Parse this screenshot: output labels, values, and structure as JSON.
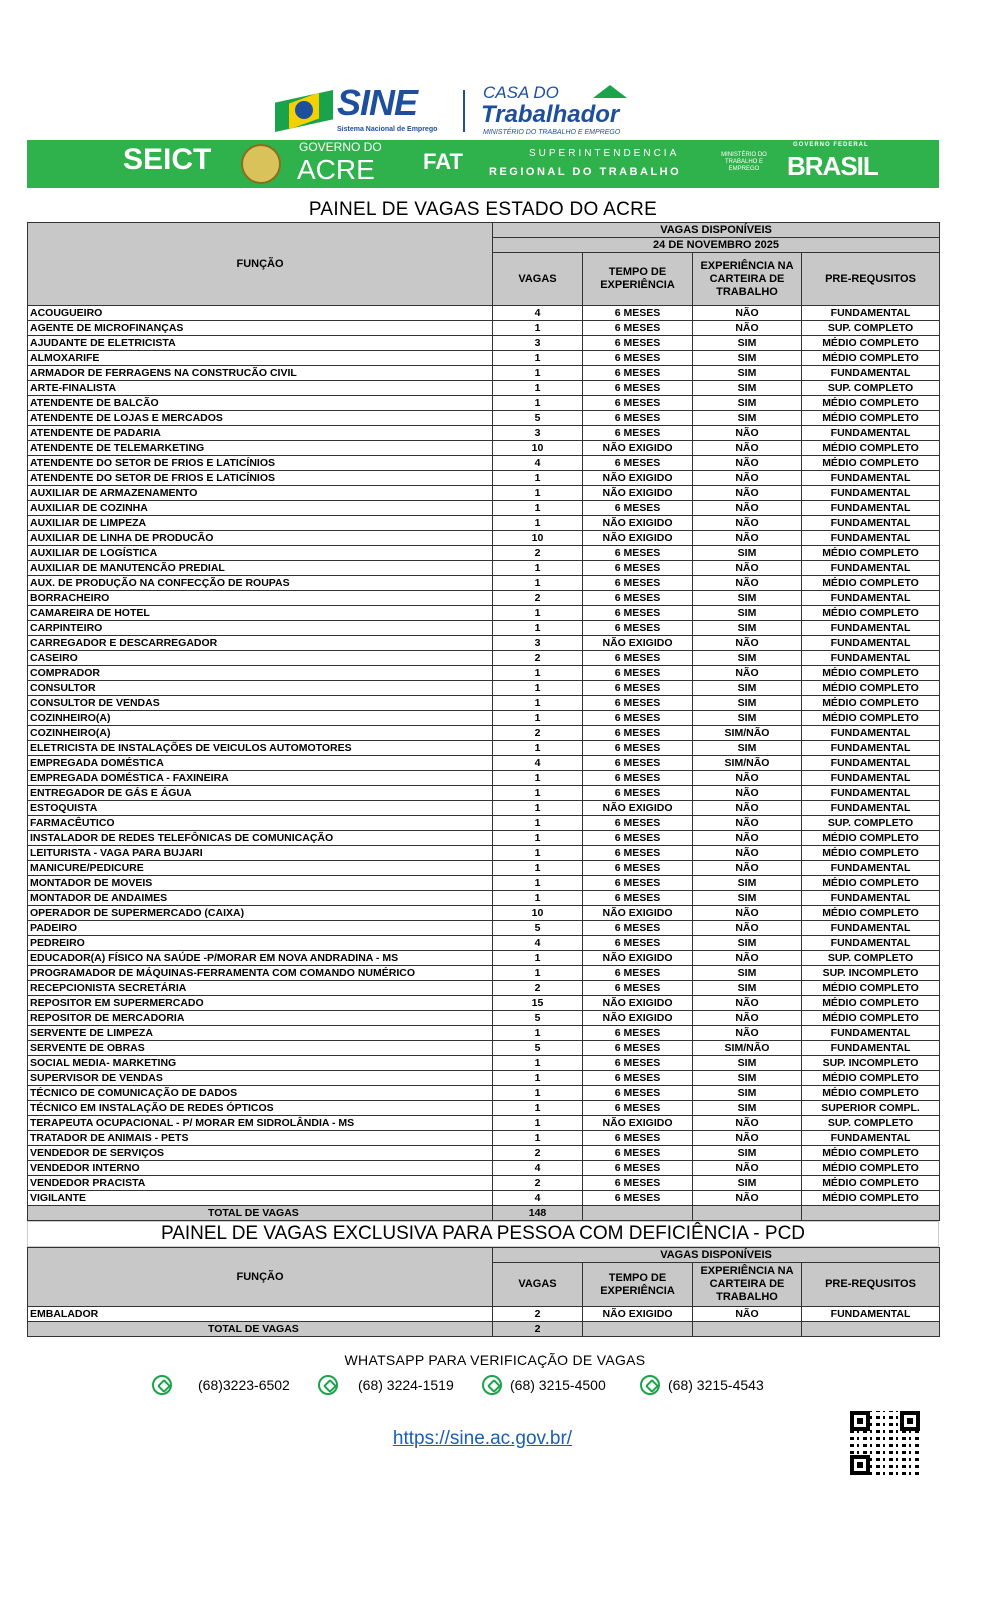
{
  "logos": {
    "sine": "SINE",
    "sine_sub": "Sistema Nacional de Emprego",
    "casa": "CASA DO",
    "trabalhador": "Trabalhador",
    "ministerio": "MINISTÉRIO DO TRABALHO E EMPREGO",
    "seict": "SEICT",
    "governo": "GOVERNO DO",
    "acre": "ACRE",
    "fat": "FAT",
    "superintendencia": "SUPERINTENDENCIA",
    "regional": "REGIONAL DO TRABALHO",
    "min_trab": "MINISTÉRIO DO TRABALHO E EMPREGO",
    "gov_federal": "GOVERNO FEDERAL",
    "brasil": "BRASIL"
  },
  "title": "PAINEL DE VAGAS ESTADO DO ACRE",
  "headers": {
    "funcao": "FUNÇÃO",
    "vagas_disponiveis": "VAGAS DISPONÍVEIS",
    "date": "24 DE NOVEMBRO 2025",
    "vagas": "VAGAS",
    "tempo": "TEMPO DE EXPERIÊNCIA",
    "experiencia": "EXPERIÊNCIA NA CARTEIRA DE TRABALHO",
    "requisitos": "PRE-REQUSITOS"
  },
  "rows": [
    [
      "ACOUGUEIRO",
      "4",
      "6 MESES",
      "NÃO",
      "FUNDAMENTAL"
    ],
    [
      "AGENTE DE MICROFINANÇAS",
      "1",
      "6 MESES",
      "NÃO",
      "SUP. COMPLETO"
    ],
    [
      "AJUDANTE DE ELETRICISTA",
      "3",
      "6 MESES",
      "SIM",
      "MÉDIO COMPLETO"
    ],
    [
      "ALMOXARIFE",
      "1",
      "6 MESES",
      "SIM",
      "MÉDIO COMPLETO"
    ],
    [
      "ARMADOR DE FERRAGENS NA CONSTRUCÃO CIVIL",
      "1",
      "6 MESES",
      "SIM",
      "FUNDAMENTAL"
    ],
    [
      "ARTE-FINALISTA",
      "1",
      "6 MESES",
      "SIM",
      "SUP. COMPLETO"
    ],
    [
      "ATENDENTE DE BALCÃO",
      "1",
      "6 MESES",
      "SIM",
      "MÉDIO COMPLETO"
    ],
    [
      "ATENDENTE DE LOJAS E MERCADOS",
      "5",
      "6 MESES",
      "SIM",
      "MÉDIO COMPLETO"
    ],
    [
      "ATENDENTE DE PADARIA",
      "3",
      "6 MESES",
      "NÃO",
      "FUNDAMENTAL"
    ],
    [
      "ATENDENTE DE TELEMARKETING",
      "10",
      "NÃO EXIGIDO",
      "NÃO",
      "MÉDIO COMPLETO"
    ],
    [
      "ATENDENTE DO SETOR DE FRIOS E LATICÍNIOS",
      "4",
      "6 MESES",
      "NÃO",
      "MÉDIO COMPLETO"
    ],
    [
      "ATENDENTE DO SETOR DE FRIOS E LATICÍNIOS",
      "1",
      "NÃO EXIGIDO",
      "NÃO",
      "FUNDAMENTAL"
    ],
    [
      "AUXILIAR DE ARMAZENAMENTO",
      "1",
      "NÃO EXIGIDO",
      "NÃO",
      "FUNDAMENTAL"
    ],
    [
      "AUXILIAR DE COZINHA",
      "1",
      "6 MESES",
      "NÃO",
      "FUNDAMENTAL"
    ],
    [
      "AUXILIAR DE LIMPEZA",
      "1",
      "NÃO EXIGIDO",
      "NÃO",
      "FUNDAMENTAL"
    ],
    [
      "AUXILIAR DE LINHA DE PRODUCÃO",
      "10",
      "NÃO EXIGIDO",
      "NÃO",
      "FUNDAMENTAL"
    ],
    [
      "AUXILIAR DE LOGÍSTICA",
      "2",
      "6 MESES",
      "SIM",
      "MÉDIO COMPLETO"
    ],
    [
      "AUXILIAR DE MANUTENCÃO PREDIAL",
      "1",
      "6 MESES",
      "NÃO",
      "FUNDAMENTAL"
    ],
    [
      "AUX. DE  PRODUÇÃO NA CONFECÇÃO DE ROUPAS",
      "1",
      "6 MESES",
      "NÃO",
      "MÉDIO COMPLETO"
    ],
    [
      "BORRACHEIRO",
      "2",
      "6 MESES",
      "SIM",
      "FUNDAMENTAL"
    ],
    [
      "CAMAREIRA DE HOTEL",
      "1",
      "6 MESES",
      "SIM",
      "MÉDIO COMPLETO"
    ],
    [
      "CARPINTEIRO",
      "1",
      "6 MESES",
      "SIM",
      "FUNDAMENTAL"
    ],
    [
      "CARREGADOR E DESCARREGADOR",
      "3",
      "NÃO EXIGIDO",
      "NÃO",
      "FUNDAMENTAL"
    ],
    [
      "CASEIRO",
      "2",
      "6 MESES",
      "SIM",
      "FUNDAMENTAL"
    ],
    [
      "COMPRADOR",
      "1",
      "6 MESES",
      "NÃO",
      "MÉDIO COMPLETO"
    ],
    [
      "CONSULTOR",
      "1",
      "6 MESES",
      "SIM",
      "MÉDIO COMPLETO"
    ],
    [
      "CONSULTOR DE VENDAS",
      "1",
      "6 MESES",
      "SIM",
      "MÉDIO COMPLETO"
    ],
    [
      "COZINHEIRO(A)",
      "1",
      "6 MESES",
      "SIM",
      "MÉDIO COMPLETO"
    ],
    [
      "COZINHEIRO(A)",
      "2",
      "6 MESES",
      "SIM/NÃO",
      "FUNDAMENTAL"
    ],
    [
      "ELETRICISTA DE INSTALAÇÕES DE VEICULOS AUTOMOTORES",
      "1",
      "6 MESES",
      "SIM",
      "FUNDAMENTAL"
    ],
    [
      "EMPREGADA DOMÉSTICA",
      "4",
      "6 MESES",
      "SIM/NÃO",
      "FUNDAMENTAL"
    ],
    [
      "EMPREGADA DOMÉSTICA - FAXINEIRA",
      "1",
      "6 MESES",
      "NÃO",
      "FUNDAMENTAL"
    ],
    [
      "ENTREGADOR DE GÁS E ÁGUA",
      "1",
      "6 MESES",
      "NÃO",
      "FUNDAMENTAL"
    ],
    [
      "ESTOQUISTA",
      "1",
      "NÃO EXIGIDO",
      "NÃO",
      "FUNDAMENTAL"
    ],
    [
      "FARMACÊUTICO",
      "1",
      "6 MESES",
      "NÃO",
      "SUP. COMPLETO"
    ],
    [
      "INSTALADOR DE REDES TELEFÔNICAS  DE COMUNICAÇÃO",
      "1",
      "6 MESES",
      "NÃO",
      "MÉDIO COMPLETO"
    ],
    [
      "LEITURISTA - VAGA PARA BUJARI",
      "1",
      "6 MESES",
      "NÃO",
      "MÉDIO COMPLETO"
    ],
    [
      "MANICURE/PEDICURE",
      "1",
      "6 MESES",
      "NÃO",
      "FUNDAMENTAL"
    ],
    [
      "MONTADOR DE MOVEIS",
      "1",
      "6 MESES",
      "SIM",
      "MÉDIO COMPLETO"
    ],
    [
      "MONTADOR DE ANDAIMES",
      "1",
      "6 MESES",
      "SIM",
      "FUNDAMENTAL"
    ],
    [
      "OPERADOR DE SUPERMERCADO (CAIXA)",
      "10",
      "NÃO EXIGIDO",
      "NÃO",
      "MÉDIO COMPLETO"
    ],
    [
      "PADEIRO",
      "5",
      "6 MESES",
      "NÃO",
      "FUNDAMENTAL"
    ],
    [
      "PEDREIRO",
      "4",
      "6 MESES",
      "SIM",
      "FUNDAMENTAL"
    ],
    [
      "EDUCADOR(A) FÍSICO NA SAÚDE -P/MORAR EM NOVA ANDRADINA - MS",
      "1",
      "NÃO EXIGIDO",
      "NÃO",
      "SUP. COMPLETO"
    ],
    [
      "PROGRAMADOR DE MÁQUINAS-FERRAMENTA COM COMANDO NUMÉRICO",
      "1",
      "6 MESES",
      "SIM",
      "SUP. INCOMPLETO"
    ],
    [
      "RECEPCIONISTA SECRETÁRIA",
      "2",
      "6 MESES",
      "SIM",
      "MÉDIO COMPLETO"
    ],
    [
      "REPOSITOR EM SUPERMERCADO",
      "15",
      "NÃO EXIGIDO",
      "NÃO",
      "MÉDIO COMPLETO"
    ],
    [
      "REPOSITOR DE MERCADORIA",
      "5",
      "NÃO EXIGIDO",
      "NÃO",
      "MÉDIO COMPLETO"
    ],
    [
      "SERVENTE DE LIMPEZA",
      "1",
      "6 MESES",
      "NÃO",
      "FUNDAMENTAL"
    ],
    [
      "SERVENTE DE OBRAS",
      "5",
      "6 MESES",
      "SIM/NÃO",
      "FUNDAMENTAL"
    ],
    [
      "SOCIAL MEDIA- MARKETING",
      "1",
      "6 MESES",
      "SIM",
      "SUP. INCOMPLETO"
    ],
    [
      "SUPERVISOR DE VENDAS",
      "1",
      "6 MESES",
      "SIM",
      "MÉDIO COMPLETO"
    ],
    [
      "TÉCNICO DE COMUNICAÇÃO DE DADOS",
      "1",
      "6 MESES",
      "SIM",
      "MÉDIO COMPLETO"
    ],
    [
      "TÉCNICO EM INSTALAÇÃO DE REDES ÓPTICOS",
      "1",
      "6 MESES",
      "SIM",
      "SUPERIOR COMPL."
    ],
    [
      "TERAPEUTA OCUPACIONAL - P/ MORAR EM SIDROLÂNDIA  - MS",
      "1",
      "NÃO EXIGIDO",
      "NÃO",
      "SUP. COMPLETO"
    ],
    [
      "TRATADOR DE ANIMAIS - PETS",
      "1",
      "6 MESES",
      "NÃO",
      "FUNDAMENTAL"
    ],
    [
      "VENDEDOR DE SERVIÇOS",
      "2",
      "6 MESES",
      "SIM",
      "MÉDIO COMPLETO"
    ],
    [
      "VENDEDOR INTERNO",
      "4",
      "6 MESES",
      "NÃO",
      "MÉDIO COMPLETO"
    ],
    [
      "VENDEDOR PRACISTA",
      "2",
      "6 MESES",
      "SIM",
      "MÉDIO COMPLETO"
    ],
    [
      "VIGILANTE",
      "4",
      "6 MESES",
      "NÃO",
      "MÉDIO COMPLETO"
    ]
  ],
  "total": {
    "label": "TOTAL DE VAGAS",
    "value": "148"
  },
  "pcd": {
    "title": "PAINEL DE VAGAS EXCLUSIVA PARA PESSOA COM DEFICIÊNCIA - PCD",
    "rows": [
      [
        "EMBALADOR",
        "2",
        "NÃO EXIGIDO",
        "NÃO",
        "FUNDAMENTAL"
      ]
    ],
    "total": {
      "label": "TOTAL DE VAGAS",
      "value": "2"
    }
  },
  "footer": {
    "whatsapp_label": "WHATSAPP PARA VERIFICAÇÃO DE VAGAS",
    "phones": [
      "(68)3223-6502",
      "(68) 3224-1519",
      "(68) 3215-4500",
      "(68) 3215-4543"
    ],
    "link": "https://sine.ac.gov.br/"
  },
  "colors": {
    "green_band": "#2fb24b",
    "header_gray": "#c8c8c8",
    "brand_blue": "#1d4f9c",
    "link": "#1a5fb4"
  }
}
